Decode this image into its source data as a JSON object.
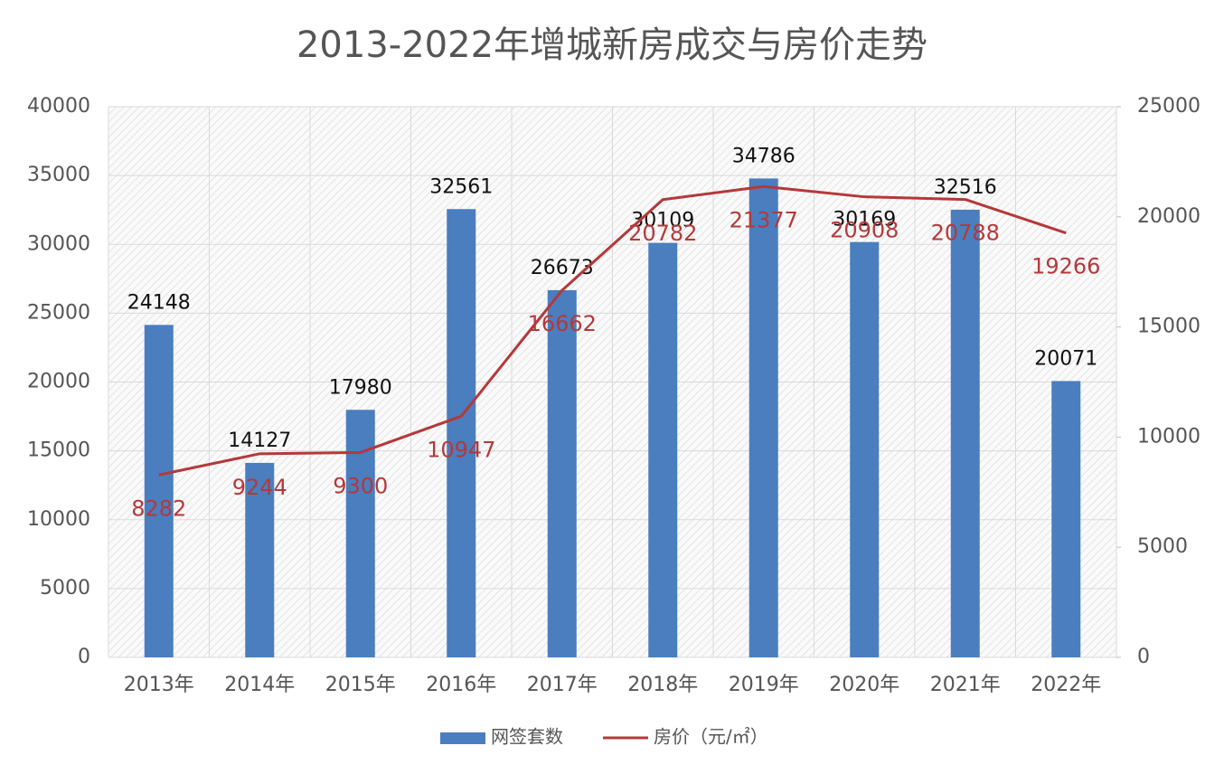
{
  "chart_data": {
    "type": "combo",
    "title": "2013-2022年增城新房成交与房价走势",
    "categories": [
      "2013年",
      "2014年",
      "2015年",
      "2016年",
      "2017年",
      "2018年",
      "2019年",
      "2020年",
      "2021年",
      "2022年"
    ],
    "series": [
      {
        "name": "网签套数",
        "type": "bar",
        "color": "#4a7ebf",
        "axis": "y",
        "values": [
          24148,
          14127,
          17980,
          32561,
          26673,
          30109,
          34786,
          30169,
          32516,
          20071
        ]
      },
      {
        "name": "房价（元/㎡）",
        "type": "line",
        "color": "#b5383a",
        "axis": "y2",
        "values": [
          8282,
          9244,
          9300,
          10947,
          16662,
          20782,
          21377,
          20908,
          20788,
          19266
        ]
      }
    ],
    "ylim": [
      0,
      40000
    ],
    "yticks": [
      0,
      5000,
      10000,
      15000,
      20000,
      25000,
      30000,
      35000,
      40000
    ],
    "y2lim": [
      0,
      25000
    ],
    "y2ticks": [
      0,
      5000,
      10000,
      15000,
      20000,
      25000
    ],
    "grid": true,
    "legend": "bottom"
  }
}
